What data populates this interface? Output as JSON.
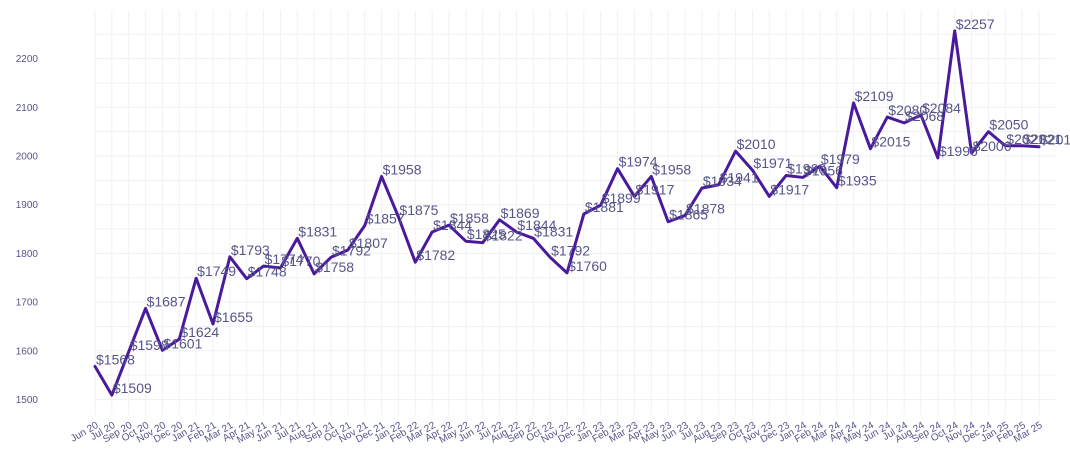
{
  "chart_data": {
    "type": "line",
    "title": "",
    "xlabel": "",
    "ylabel": "",
    "ylim": [
      1480,
      2290
    ],
    "yticks": [
      1500,
      1600,
      1700,
      1800,
      1900,
      2000,
      2100,
      2200
    ],
    "grid": true,
    "legend": "none",
    "line_color": "#4a1a9c",
    "label_prefix": "$",
    "categories": [
      "Jun 20",
      "Jul 20",
      "Sep 20",
      "Oct 20",
      "Nov 20",
      "Dec 20",
      "Jan 21",
      "Feb 21",
      "Mar 21",
      "Apr 21",
      "May 21",
      "Jun 21",
      "Jul 21",
      "Aug 21",
      "Sep 21",
      "Oct 21",
      "Nov 21",
      "Dec 21",
      "Jan 22",
      "Feb 22",
      "Mar 22",
      "Apr 22",
      "May 22",
      "Jun 22",
      "Jul 22",
      "Aug 22",
      "Sep 22",
      "Oct 22",
      "Nov 22",
      "Dec 22",
      "Jan 23",
      "Feb 23",
      "Mar 23",
      "Apr 23",
      "May 23",
      "Jun 23",
      "Jul 23",
      "Aug 23",
      "Sep 23",
      "Oct 23",
      "Nov 23",
      "Dec 23",
      "Jan 24",
      "Feb 24",
      "Mar 24",
      "Apr 24",
      "May 24",
      "Jun 24",
      "Jul 24",
      "Aug 24",
      "Sep 24",
      "Oct 24",
      "Nov 24",
      "Dec 24",
      "Jan 25",
      "Feb 25",
      "Mar 25"
    ],
    "values": [
      1568,
      1509,
      1598,
      1687,
      1601,
      1624,
      1749,
      1655,
      1793,
      1748,
      1774,
      1770,
      1831,
      1758,
      1792,
      1807,
      1857,
      1958,
      1875,
      1782,
      1844,
      1858,
      1825,
      1822,
      1869,
      1844,
      1831,
      1792,
      1760,
      1881,
      1899,
      1974,
      1917,
      1958,
      1865,
      1878,
      1934,
      1941,
      2010,
      1971,
      1917,
      1960,
      1956,
      1979,
      1935,
      2109,
      2015,
      2080,
      2068,
      2084,
      1996,
      2257,
      2006,
      2050,
      2021,
      2021,
      2019
    ]
  }
}
